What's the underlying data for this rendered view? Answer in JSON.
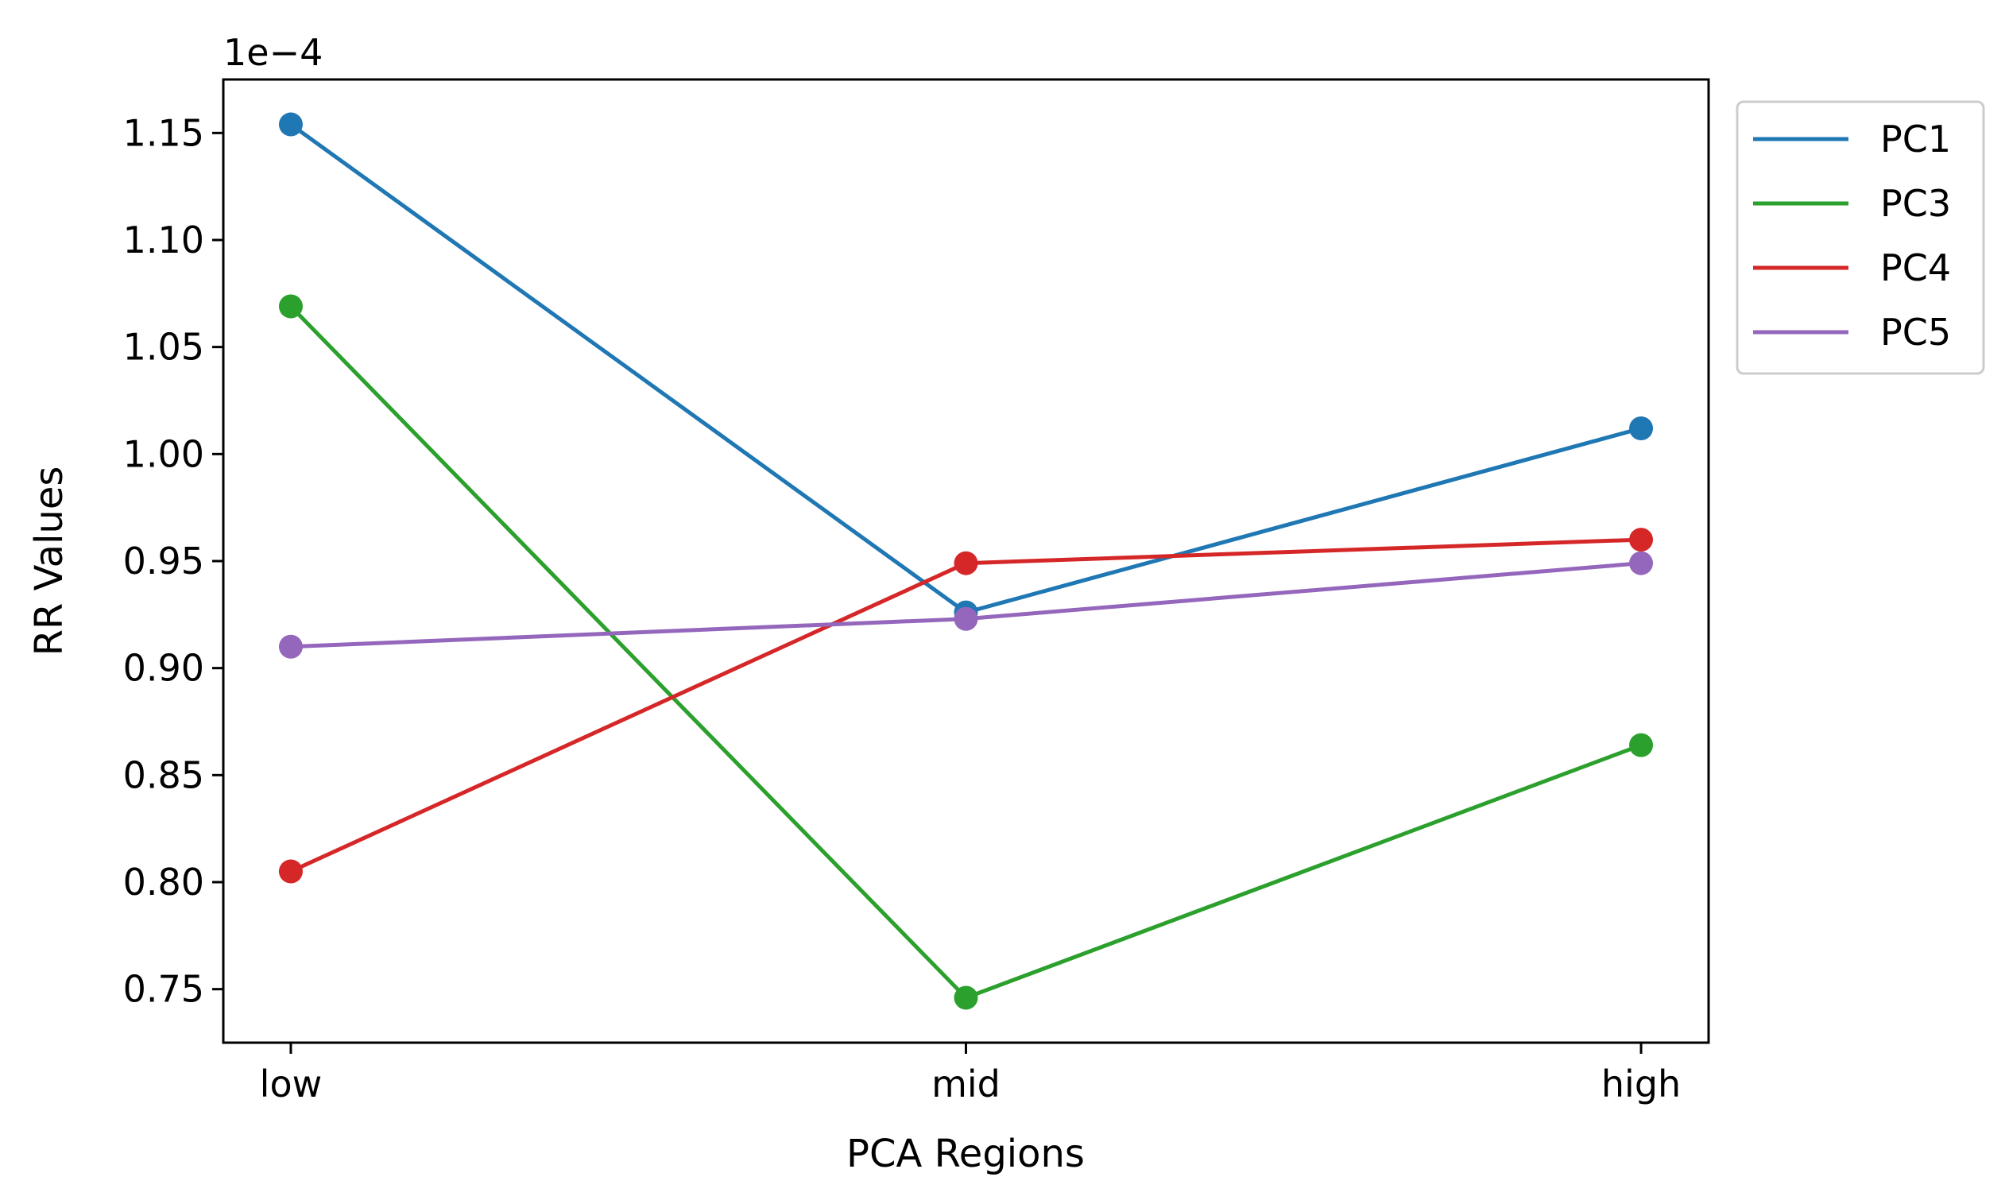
{
  "chart_data": {
    "type": "line",
    "categories": [
      "low",
      "mid",
      "high"
    ],
    "scale_factor_label": "1e−4",
    "xlabel": "PCA Regions",
    "ylabel": "RR Values",
    "ylim": [
      0.725,
      1.175
    ],
    "yticks": [
      "0.75",
      "0.80",
      "0.85",
      "0.90",
      "0.95",
      "1.00",
      "1.05",
      "1.10",
      "1.15"
    ],
    "grid": false,
    "legend_position": "outside-upper-right",
    "series": [
      {
        "name": "PC1",
        "color": "#1f77b4",
        "values": [
          1.154,
          0.926,
          1.012
        ]
      },
      {
        "name": "PC3",
        "color": "#2ca02c",
        "values": [
          1.069,
          0.746,
          0.864
        ]
      },
      {
        "name": "PC4",
        "color": "#d62728",
        "values": [
          0.805,
          0.949,
          0.96
        ]
      },
      {
        "name": "PC5",
        "color": "#9467bd",
        "values": [
          0.91,
          0.923,
          0.949
        ]
      }
    ]
  }
}
